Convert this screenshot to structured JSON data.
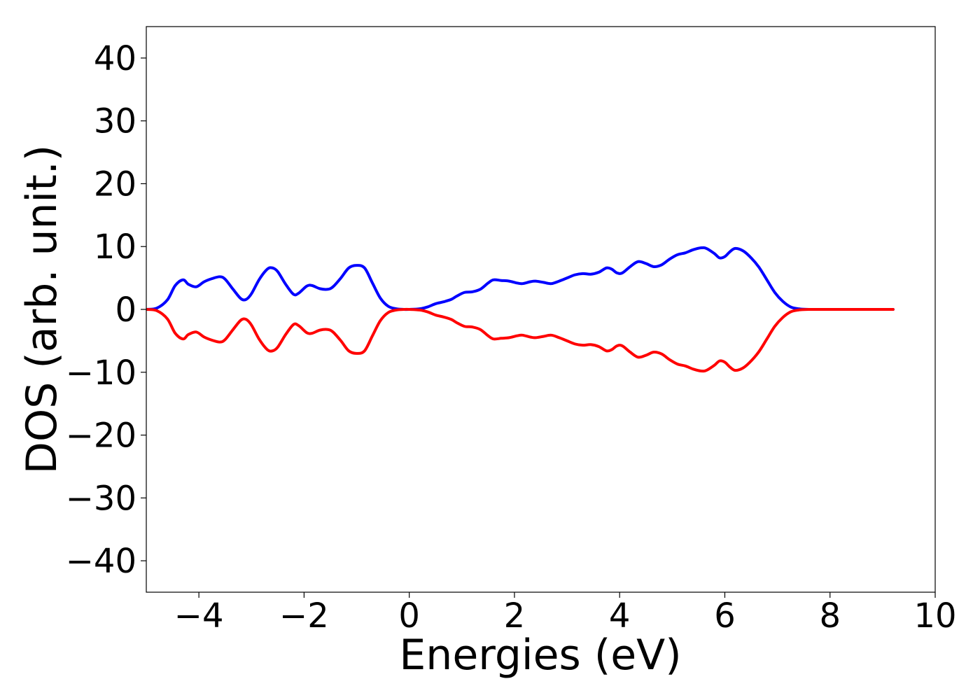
{
  "chart_data": {
    "type": "line",
    "title": "",
    "xlabel": "Energies (eV)",
    "ylabel": "DOS (arb. unit.)",
    "xlim": [
      -5,
      10
    ],
    "ylim": [
      -45,
      45
    ],
    "xticks": [
      -4,
      -2,
      0,
      2,
      4,
      6,
      8,
      10
    ],
    "xtick_labels": [
      "−4",
      "−2",
      "0",
      "2",
      "4",
      "6",
      "8",
      "10"
    ],
    "yticks": [
      -40,
      -30,
      -20,
      -10,
      0,
      10,
      20,
      30,
      40
    ],
    "ytick_labels": [
      "−40",
      "−30",
      "−20",
      "−10",
      "0",
      "10",
      "20",
      "30",
      "40"
    ],
    "grid": false,
    "x": [
      -5.0,
      -4.8,
      -4.6,
      -4.45,
      -4.3,
      -4.2,
      -4.05,
      -3.9,
      -3.75,
      -3.6,
      -3.5,
      -3.35,
      -3.2,
      -3.1,
      -3.0,
      -2.85,
      -2.7,
      -2.6,
      -2.5,
      -2.35,
      -2.2,
      -2.1,
      -1.95,
      -1.85,
      -1.7,
      -1.55,
      -1.45,
      -1.3,
      -1.15,
      -1.0,
      -0.85,
      -0.7,
      -0.55,
      -0.4,
      -0.25,
      -0.1,
      0.0,
      0.2,
      0.35,
      0.5,
      0.65,
      0.8,
      0.9,
      1.05,
      1.2,
      1.35,
      1.5,
      1.6,
      1.75,
      1.9,
      2.05,
      2.15,
      2.3,
      2.4,
      2.55,
      2.7,
      2.85,
      3.0,
      3.15,
      3.3,
      3.45,
      3.6,
      3.75,
      3.85,
      3.95,
      4.05,
      4.2,
      4.35,
      4.5,
      4.65,
      4.8,
      4.95,
      5.1,
      5.25,
      5.4,
      5.55,
      5.65,
      5.8,
      5.9,
      6.0,
      6.1,
      6.2,
      6.35,
      6.5,
      6.65,
      6.8,
      6.95,
      7.1,
      7.25,
      7.4,
      7.6,
      8.0,
      8.5,
      9.2
    ],
    "series": [
      {
        "color": "#0000ff",
        "values": [
          0.0,
          0.2,
          1.5,
          3.8,
          4.7,
          4.0,
          3.6,
          4.4,
          4.9,
          5.2,
          4.8,
          3.2,
          1.7,
          1.6,
          2.5,
          4.8,
          6.4,
          6.6,
          6.0,
          4.0,
          2.4,
          2.6,
          3.7,
          3.8,
          3.3,
          3.2,
          3.6,
          5.0,
          6.6,
          7.0,
          6.6,
          4.2,
          1.8,
          0.5,
          0.1,
          0.0,
          0.0,
          0.1,
          0.4,
          0.9,
          1.2,
          1.6,
          2.1,
          2.7,
          2.8,
          3.2,
          4.2,
          4.7,
          4.6,
          4.5,
          4.2,
          4.1,
          4.4,
          4.5,
          4.3,
          4.1,
          4.5,
          5.0,
          5.5,
          5.7,
          5.6,
          5.9,
          6.6,
          6.4,
          5.8,
          5.8,
          6.8,
          7.6,
          7.3,
          6.8,
          7.1,
          8.0,
          8.7,
          9.0,
          9.5,
          9.8,
          9.7,
          8.9,
          8.2,
          8.4,
          9.2,
          9.7,
          9.3,
          8.2,
          6.7,
          4.7,
          2.7,
          1.3,
          0.4,
          0.1,
          0.0,
          0.0,
          0.0,
          0.0
        ]
      },
      {
        "color": "#ff0000",
        "values": [
          0.0,
          -0.2,
          -1.5,
          -3.8,
          -4.7,
          -4.0,
          -3.6,
          -4.4,
          -4.9,
          -5.2,
          -4.8,
          -3.2,
          -1.7,
          -1.6,
          -2.5,
          -4.8,
          -6.4,
          -6.6,
          -6.0,
          -4.0,
          -2.4,
          -2.6,
          -3.7,
          -3.8,
          -3.3,
          -3.2,
          -3.6,
          -5.0,
          -6.6,
          -7.0,
          -6.6,
          -4.2,
          -1.8,
          -0.5,
          -0.1,
          0.0,
          0.0,
          -0.1,
          -0.4,
          -0.9,
          -1.2,
          -1.6,
          -2.1,
          -2.7,
          -2.8,
          -3.2,
          -4.2,
          -4.7,
          -4.6,
          -4.5,
          -4.2,
          -4.1,
          -4.4,
          -4.5,
          -4.3,
          -4.1,
          -4.5,
          -5.0,
          -5.5,
          -5.7,
          -5.6,
          -5.9,
          -6.6,
          -6.4,
          -5.8,
          -5.8,
          -6.8,
          -7.6,
          -7.3,
          -6.8,
          -7.1,
          -8.0,
          -8.7,
          -9.0,
          -9.5,
          -9.8,
          -9.7,
          -8.9,
          -8.2,
          -8.4,
          -9.2,
          -9.7,
          -9.3,
          -8.2,
          -6.7,
          -4.7,
          -2.7,
          -1.3,
          -0.4,
          -0.1,
          0.0,
          0.0,
          0.0,
          0.0
        ]
      }
    ]
  }
}
